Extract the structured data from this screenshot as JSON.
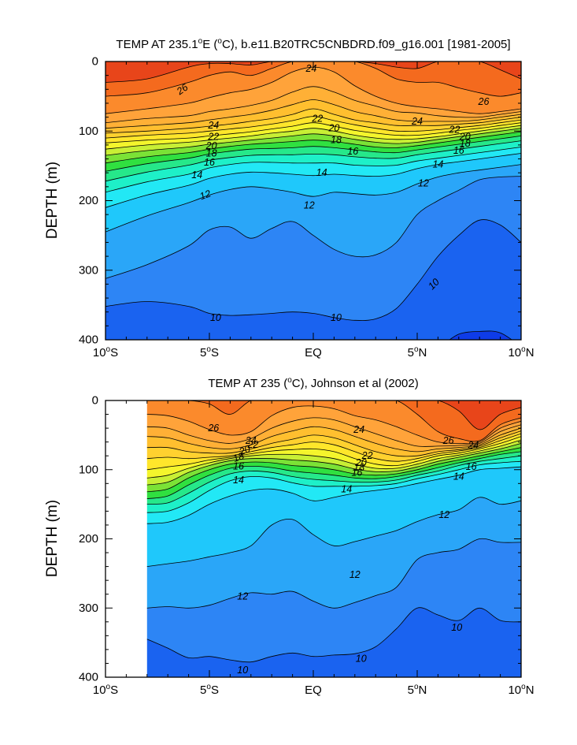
{
  "colors": {
    "c8": "#0e3ce8",
    "c9": "#1a63f0",
    "c10": "#2d85f5",
    "c11": "#2aa6f8",
    "c12": "#1fc8fb",
    "c13": "#22e8f5",
    "c14": "#1ef0c8",
    "c15": "#26e88a",
    "c16": "#30e040",
    "c17": "#7be236",
    "c18": "#c8ef35",
    "c19": "#f4f52c",
    "c20": "#ffe62b",
    "c21": "#ffd12f",
    "c22": "#ffbf2f",
    "c23": "#ffb036",
    "c24": "#ffa33a",
    "c25": "#fb8a2c",
    "c26": "#f46a1e",
    "c27": "#e8451a"
  },
  "chart_data": [
    {
      "type": "contour",
      "title": "TEMP AT 235.1°E (°C), b.e11.B20TRC5CNBDRD.f09_g16.001 [1981-2005]",
      "title_parts": [
        "TEMP AT 235.1",
        "o",
        "E (",
        "o",
        "C), b.e11.B20TRC5CNBDRD.f09_g16.001 [1981-2005]"
      ],
      "xlabel": "",
      "ylabel": "DEPTH (m)",
      "x_ticks": [
        "10°S",
        "5°S",
        "EQ",
        "5°N",
        "10°N"
      ],
      "x_tick_parts": [
        [
          "10",
          "S"
        ],
        [
          "5",
          "S"
        ],
        [
          "EQ",
          ""
        ],
        [
          "5",
          "N"
        ],
        [
          "10",
          "N"
        ]
      ],
      "x_tick_values": [
        -10,
        -5,
        0,
        5,
        10
      ],
      "xlim": [
        -10,
        10
      ],
      "y_ticks": [
        0,
        100,
        200,
        300,
        400
      ],
      "ylim": [
        0,
        400
      ],
      "y_inverted": true,
      "data_xlim": [
        -10,
        10
      ],
      "contour_interval": 1,
      "isotherm_depths": {
        "x": [
          -10,
          -8,
          -6,
          -5,
          -4,
          -3,
          -2,
          -1,
          0,
          1,
          2,
          3,
          4,
          5,
          6,
          7,
          8,
          9,
          10
        ],
        "t27": [
          30,
          25,
          8,
          3,
          3,
          5,
          0,
          0,
          0,
          0,
          0,
          3,
          8,
          10,
          0,
          0,
          0,
          12,
          25
        ],
        "t26": [
          50,
          45,
          30,
          20,
          15,
          20,
          10,
          0,
          0,
          0,
          0,
          10,
          25,
          30,
          30,
          38,
          45,
          50,
          45
        ],
        "t25": [
          75,
          68,
          60,
          52,
          45,
          40,
          30,
          15,
          8,
          15,
          35,
          50,
          60,
          65,
          68,
          72,
          75,
          72,
          68
        ],
        "t24": [
          88,
          82,
          78,
          72,
          68,
          63,
          56,
          44,
          36,
          44,
          56,
          64,
          72,
          74,
          78,
          80,
          80,
          76,
          72
        ],
        "t23": [
          96,
          92,
          88,
          84,
          80,
          76,
          70,
          62,
          55,
          62,
          72,
          78,
          84,
          86,
          86,
          86,
          84,
          80,
          76
        ],
        "t22": [
          103,
          100,
          96,
          93,
          90,
          86,
          82,
          76,
          68,
          76,
          84,
          88,
          92,
          92,
          92,
          90,
          88,
          84,
          80
        ],
        "t21": [
          110,
          106,
          103,
          100,
          97,
          94,
          90,
          85,
          79,
          85,
          91,
          96,
          100,
          100,
          98,
          95,
          92,
          88,
          84
        ],
        "t20": [
          117,
          113,
          110,
          107,
          104,
          101,
          97,
          93,
          88,
          93,
          99,
          103,
          106,
          106,
          103,
          99,
          96,
          92,
          88
        ],
        "t19": [
          126,
          120,
          116,
          113,
          110,
          107,
          103,
          100,
          96,
          100,
          106,
          110,
          112,
          111,
          108,
          104,
          100,
          96,
          92
        ],
        "t18": [
          135,
          128,
          123,
          119,
          116,
          113,
          110,
          107,
          104,
          107,
          112,
          116,
          118,
          116,
          112,
          108,
          104,
          100,
          96
        ],
        "t17": [
          146,
          137,
          131,
          126,
          122,
          119,
          117,
          115,
          113,
          115,
          119,
          123,
          124,
          121,
          117,
          113,
          109,
          105,
          101
        ],
        "t16": [
          158,
          147,
          139,
          133,
          129,
          126,
          125,
          124,
          122,
          124,
          127,
          130,
          131,
          127,
          123,
          119,
          115,
          111,
          107
        ],
        "t15": [
          172,
          159,
          149,
          142,
          138,
          135,
          134,
          134,
          133,
          134,
          137,
          139,
          139,
          134,
          130,
          126,
          122,
          118,
          114
        ],
        "t14": [
          188,
          173,
          162,
          153,
          148,
          145,
          145,
          146,
          146,
          146,
          149,
          150,
          149,
          143,
          139,
          135,
          131,
          127,
          123
        ],
        "t13": [
          210,
          192,
          178,
          168,
          162,
          159,
          160,
          162,
          164,
          162,
          164,
          165,
          162,
          154,
          148,
          144,
          140,
          136,
          132
        ],
        "t12": [
          245,
          222,
          203,
          192,
          184,
          180,
          183,
          188,
          194,
          188,
          190,
          192,
          188,
          176,
          166,
          160,
          156,
          152,
          148
        ],
        "t11": [
          312,
          292,
          265,
          242,
          238,
          254,
          240,
          230,
          250,
          270,
          280,
          278,
          260,
          220,
          200,
          185,
          170,
          166,
          165
        ],
        "t10": [
          352,
          345,
          352,
          362,
          365,
          364,
          362,
          360,
          362,
          368,
          372,
          370,
          355,
          320,
          280,
          250,
          228,
          235,
          260
        ],
        "t9": [
          410,
          410,
          410,
          410,
          410,
          410,
          410,
          410,
          410,
          410,
          410,
          410,
          410,
          410,
          410,
          392,
          388,
          390,
          410
        ]
      },
      "labels": [
        {
          "text": "26",
          "x": -6.3,
          "y": 40,
          "angle": -35
        },
        {
          "text": "24",
          "x": -0.1,
          "y": 10,
          "angle": 0
        },
        {
          "text": "26",
          "x": 8.2,
          "y": 58,
          "angle": 0
        },
        {
          "text": "24",
          "x": -4.8,
          "y": 92,
          "angle": 0
        },
        {
          "text": "22",
          "x": -4.8,
          "y": 108,
          "angle": 0
        },
        {
          "text": "20",
          "x": -4.9,
          "y": 121,
          "angle": 0
        },
        {
          "text": "18",
          "x": -4.9,
          "y": 132,
          "angle": 0
        },
        {
          "text": "16",
          "x": -5.0,
          "y": 145,
          "angle": 0
        },
        {
          "text": "14",
          "x": -5.6,
          "y": 163,
          "angle": 0
        },
        {
          "text": "12",
          "x": -5.2,
          "y": 192,
          "angle": -20
        },
        {
          "text": "22",
          "x": 0.2,
          "y": 82,
          "angle": 0
        },
        {
          "text": "20",
          "x": 1.0,
          "y": 96,
          "angle": 0
        },
        {
          "text": "18",
          "x": 1.1,
          "y": 113,
          "angle": 0
        },
        {
          "text": "16",
          "x": 1.9,
          "y": 129,
          "angle": 0
        },
        {
          "text": "14",
          "x": 0.4,
          "y": 160,
          "angle": 0
        },
        {
          "text": "12",
          "x": -0.2,
          "y": 207,
          "angle": 0
        },
        {
          "text": "24",
          "x": 5.0,
          "y": 86,
          "angle": 0
        },
        {
          "text": "22",
          "x": 6.8,
          "y": 98,
          "angle": 0
        },
        {
          "text": "20",
          "x": 7.3,
          "y": 108,
          "angle": 0
        },
        {
          "text": "18",
          "x": 7.3,
          "y": 118,
          "angle": 0
        },
        {
          "text": "16",
          "x": 7.0,
          "y": 128,
          "angle": 0
        },
        {
          "text": "14",
          "x": 6.0,
          "y": 148,
          "angle": 0
        },
        {
          "text": "12",
          "x": 5.3,
          "y": 175,
          "angle": 0
        },
        {
          "text": "10",
          "x": 5.8,
          "y": 320,
          "angle": -45
        },
        {
          "text": "10",
          "x": -4.7,
          "y": 368,
          "angle": 0
        },
        {
          "text": "10",
          "x": 1.1,
          "y": 368,
          "angle": 0
        }
      ]
    },
    {
      "type": "contour",
      "title": "TEMP AT 235 (°C), Johnson et al (2002)",
      "title_parts": [
        "TEMP AT 235 (",
        "o",
        "C), Johnson et al (2002)",
        "",
        ""
      ],
      "xlabel": "",
      "ylabel": "DEPTH (m)",
      "x_ticks": [
        "10°S",
        "5°S",
        "EQ",
        "5°N",
        "10°N"
      ],
      "x_tick_parts": [
        [
          "10",
          "S"
        ],
        [
          "5",
          "S"
        ],
        [
          "EQ",
          ""
        ],
        [
          "5",
          "N"
        ],
        [
          "10",
          "N"
        ]
      ],
      "x_tick_values": [
        -10,
        -5,
        0,
        5,
        10
      ],
      "xlim": [
        -10,
        10
      ],
      "y_ticks": [
        0,
        100,
        200,
        300,
        400
      ],
      "ylim": [
        0,
        400
      ],
      "y_inverted": true,
      "data_xlim": [
        -8,
        10
      ],
      "contour_interval": 1,
      "isotherm_depths": {
        "x": [
          -8,
          -7,
          -6,
          -5,
          -4,
          -3,
          -2,
          -1,
          0,
          1,
          2,
          3,
          4,
          5,
          6,
          7,
          8,
          9,
          10
        ],
        "t27": [
          0,
          0,
          0,
          0,
          0,
          0,
          0,
          0,
          0,
          0,
          0,
          0,
          0,
          0,
          0,
          15,
          42,
          20,
          10
        ],
        "t26": [
          0,
          0,
          0,
          5,
          20,
          0,
          0,
          0,
          0,
          0,
          0,
          0,
          0,
          20,
          45,
          55,
          58,
          35,
          25
        ],
        "t25": [
          20,
          22,
          30,
          42,
          50,
          45,
          22,
          10,
          8,
          12,
          22,
          28,
          38,
          50,
          60,
          62,
          60,
          40,
          30
        ],
        "t24": [
          38,
          40,
          50,
          58,
          62,
          55,
          40,
          30,
          25,
          28,
          38,
          48,
          58,
          66,
          66,
          65,
          62,
          45,
          35
        ],
        "t23": [
          52,
          54,
          62,
          68,
          70,
          64,
          52,
          44,
          38,
          42,
          52,
          62,
          70,
          74,
          70,
          68,
          64,
          50,
          40
        ],
        "t22": [
          68,
          68,
          74,
          76,
          76,
          70,
          62,
          56,
          50,
          54,
          64,
          74,
          80,
          80,
          74,
          71,
          66,
          54,
          44
        ],
        "t21": [
          84,
          82,
          84,
          82,
          80,
          74,
          68,
          64,
          60,
          64,
          74,
          84,
          88,
          84,
          77,
          73,
          68,
          58,
          48
        ],
        "t20": [
          100,
          96,
          92,
          86,
          82,
          77,
          73,
          71,
          70,
          74,
          84,
          92,
          94,
          88,
          80,
          76,
          70,
          62,
          52
        ],
        "t19": [
          112,
          108,
          98,
          90,
          84,
          80,
          78,
          78,
          80,
          84,
          92,
          98,
          98,
          92,
          84,
          79,
          73,
          66,
          57
        ],
        "t18": [
          122,
          118,
          104,
          94,
          87,
          84,
          84,
          86,
          88,
          92,
          99,
          103,
          102,
          96,
          88,
          82,
          76,
          70,
          62
        ],
        "t17": [
          132,
          128,
          112,
          100,
          92,
          89,
          90,
          94,
          96,
          100,
          106,
          108,
          106,
          100,
          92,
          86,
          80,
          74,
          68
        ],
        "t16": [
          142,
          138,
          122,
          108,
          98,
          95,
          97,
          102,
          105,
          108,
          112,
          113,
          110,
          104,
          97,
          90,
          84,
          78,
          74
        ],
        "t15": [
          150,
          148,
          134,
          118,
          106,
          102,
          104,
          110,
          114,
          116,
          118,
          118,
          115,
          108,
          102,
          94,
          88,
          84,
          80
        ],
        "t14": [
          162,
          160,
          148,
          130,
          116,
          110,
          112,
          119,
          124,
          124,
          124,
          123,
          120,
          113,
          107,
          100,
          93,
          90,
          88
        ],
        "t13": [
          178,
          176,
          166,
          150,
          138,
          130,
          128,
          134,
          145,
          140,
          134,
          130,
          126,
          120,
          114,
          108,
          100,
          98,
          96
        ],
        "t12": [
          240,
          236,
          232,
          226,
          220,
          210,
          180,
          172,
          194,
          210,
          204,
          196,
          188,
          175,
          165,
          158,
          140,
          150,
          145
        ],
        "t11": [
          300,
          298,
          300,
          296,
          286,
          278,
          280,
          276,
          290,
          300,
          292,
          282,
          270,
          230,
          220,
          215,
          200,
          205,
          205
        ],
        "t10": [
          345,
          358,
          372,
          370,
          375,
          378,
          370,
          365,
          370,
          368,
          366,
          356,
          330,
          300,
          310,
          318,
          300,
          318,
          320
        ],
        "t9": [
          410,
          410,
          410,
          410,
          410,
          410,
          410,
          410,
          410,
          410,
          410,
          410,
          410,
          410,
          410,
          410,
          410,
          410,
          410
        ]
      },
      "labels": [
        {
          "text": "26",
          "x": -4.8,
          "y": 40,
          "angle": 0
        },
        {
          "text": "24",
          "x": -3.0,
          "y": 58,
          "angle": 0
        },
        {
          "text": "22",
          "x": -2.9,
          "y": 64,
          "angle": 0
        },
        {
          "text": "20",
          "x": -3.3,
          "y": 72,
          "angle": -20
        },
        {
          "text": "18",
          "x": -3.6,
          "y": 82,
          "angle": -20
        },
        {
          "text": "16",
          "x": -3.6,
          "y": 95,
          "angle": 0
        },
        {
          "text": "14",
          "x": -3.6,
          "y": 115,
          "angle": 0
        },
        {
          "text": "24",
          "x": 2.2,
          "y": 42,
          "angle": 0
        },
        {
          "text": "22",
          "x": 2.6,
          "y": 80,
          "angle": 0
        },
        {
          "text": "20",
          "x": 2.3,
          "y": 90,
          "angle": 0
        },
        {
          "text": "18",
          "x": 2.2,
          "y": 97,
          "angle": 0
        },
        {
          "text": "16",
          "x": 2.1,
          "y": 104,
          "angle": 0
        },
        {
          "text": "14",
          "x": 1.6,
          "y": 128,
          "angle": 0
        },
        {
          "text": "26",
          "x": 6.5,
          "y": 58,
          "angle": 0
        },
        {
          "text": "24",
          "x": 7.7,
          "y": 65,
          "angle": 0
        },
        {
          "text": "16",
          "x": 7.6,
          "y": 96,
          "angle": 0
        },
        {
          "text": "14",
          "x": 7.0,
          "y": 110,
          "angle": 0
        },
        {
          "text": "12",
          "x": 6.3,
          "y": 165,
          "angle": 0
        },
        {
          "text": "12",
          "x": 2.0,
          "y": 252,
          "angle": 0
        },
        {
          "text": "12",
          "x": -3.4,
          "y": 283,
          "angle": 0
        },
        {
          "text": "10",
          "x": 6.9,
          "y": 328,
          "angle": 0
        },
        {
          "text": "10",
          "x": 2.3,
          "y": 373,
          "angle": 0
        },
        {
          "text": "10",
          "x": -3.4,
          "y": 390,
          "angle": 0
        }
      ]
    }
  ]
}
